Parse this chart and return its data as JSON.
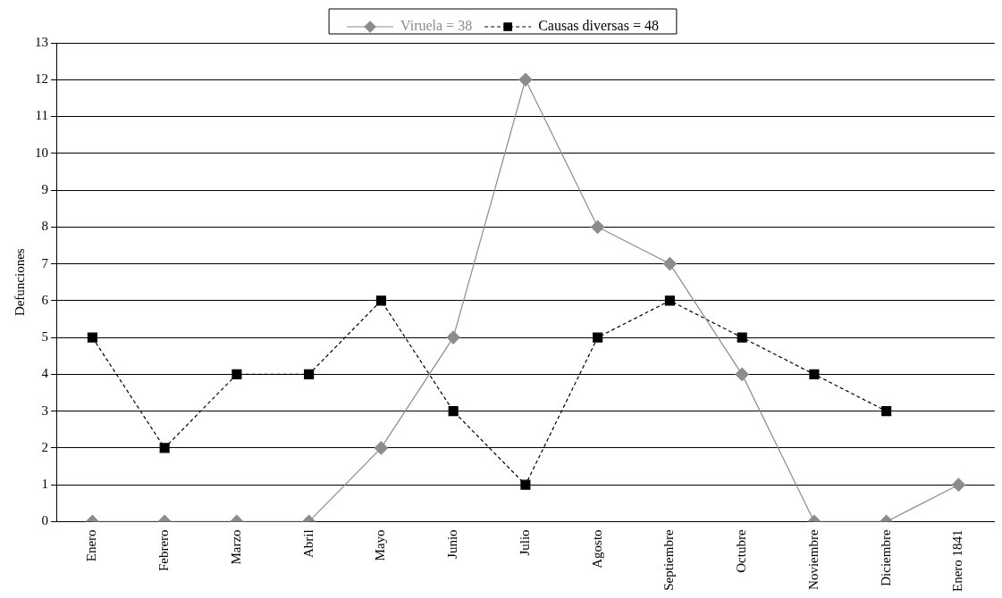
{
  "chart_data": {
    "type": "line",
    "ylabel": "Defunciones",
    "categories": [
      "Enero",
      "Febrero",
      "Marzo",
      "Abril",
      "Mayo",
      "Junio",
      "Julio",
      "Agosto",
      "Septiembre",
      "Octubre",
      "Noviembre",
      "Diciembre",
      "Enero 1841"
    ],
    "series": [
      {
        "name": "Viruela = 38",
        "color": "#8c8c8c",
        "marker": "diamond",
        "line_style": "solid",
        "values": [
          0,
          0,
          0,
          0,
          2,
          5,
          12,
          8,
          7,
          4,
          0,
          0,
          1
        ]
      },
      {
        "name": "Causas diversas = 48",
        "color": "#000000",
        "marker": "square",
        "line_style": "dashed",
        "values": [
          5,
          2,
          4,
          4,
          6,
          3,
          1,
          5,
          6,
          5,
          4,
          3,
          null
        ]
      }
    ],
    "ylim": [
      0,
      13
    ],
    "yticks": [
      0,
      1,
      2,
      3,
      4,
      5,
      6,
      7,
      8,
      9,
      10,
      11,
      12,
      13
    ],
    "grid": "y",
    "legend": "top"
  }
}
